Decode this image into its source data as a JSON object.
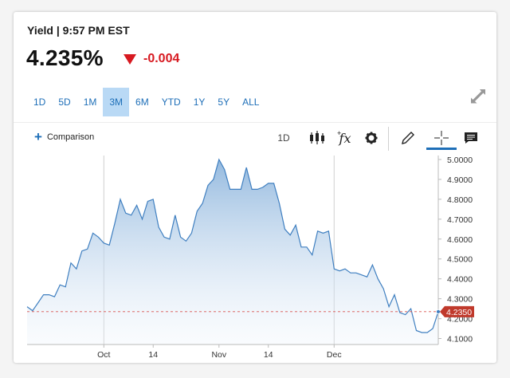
{
  "header": {
    "title": "Yield | 9:57 PM EST"
  },
  "quote": {
    "value": "4.235%",
    "change": "-0.004"
  },
  "ranges": [
    "1D",
    "5D",
    "1M",
    "3M",
    "6M",
    "YTD",
    "1Y",
    "5Y",
    "ALL"
  ],
  "active_range": "3M",
  "toolbar": {
    "comparison_label": "Comparison",
    "plus_glyph": "+",
    "interval": "1D",
    "fx_label": "fx"
  },
  "colors": {
    "accent": "#1e6fb8",
    "negative": "#d71920",
    "line": "#3f7fc0",
    "active_tab": "#b9d9f5"
  },
  "chart_data": {
    "type": "area",
    "ylim": [
      4.07,
      5.02
    ],
    "yticks": [
      "4.1000",
      "4.2000",
      "4.3000",
      "4.4000",
      "4.5000",
      "4.6000",
      "4.7000",
      "4.8000",
      "4.9000",
      "5.0000"
    ],
    "xticks": [
      {
        "label": "Oct",
        "i": 14
      },
      {
        "label": "14",
        "i": 23
      },
      {
        "label": "Nov",
        "i": 35
      },
      {
        "label": "14",
        "i": 44
      },
      {
        "label": "Dec",
        "i": 56
      }
    ],
    "gridlines_x": [
      14,
      56
    ],
    "last_value": "4.2350",
    "last_value_num": 4.235,
    "series": [
      {
        "values": [
          4.26,
          4.24,
          4.28,
          4.32,
          4.32,
          4.31,
          4.37,
          4.36,
          4.48,
          4.45,
          4.54,
          4.55,
          4.63,
          4.61,
          4.58,
          4.57,
          4.68,
          4.8,
          4.73,
          4.72,
          4.77,
          4.7,
          4.79,
          4.8,
          4.66,
          4.61,
          4.6,
          4.72,
          4.61,
          4.59,
          4.63,
          4.74,
          4.78,
          4.87,
          4.9,
          5.0,
          4.95,
          4.85,
          4.85,
          4.85,
          4.96,
          4.85,
          4.85,
          4.86,
          4.88,
          4.88,
          4.78,
          4.65,
          4.62,
          4.67,
          4.56,
          4.56,
          4.52,
          4.64,
          4.63,
          4.64,
          4.45,
          4.44,
          4.45,
          4.43,
          4.43,
          4.42,
          4.41,
          4.47,
          4.4,
          4.35,
          4.26,
          4.32,
          4.23,
          4.22,
          4.25,
          4.14,
          4.13,
          4.13,
          4.15,
          4.235
        ]
      }
    ]
  }
}
